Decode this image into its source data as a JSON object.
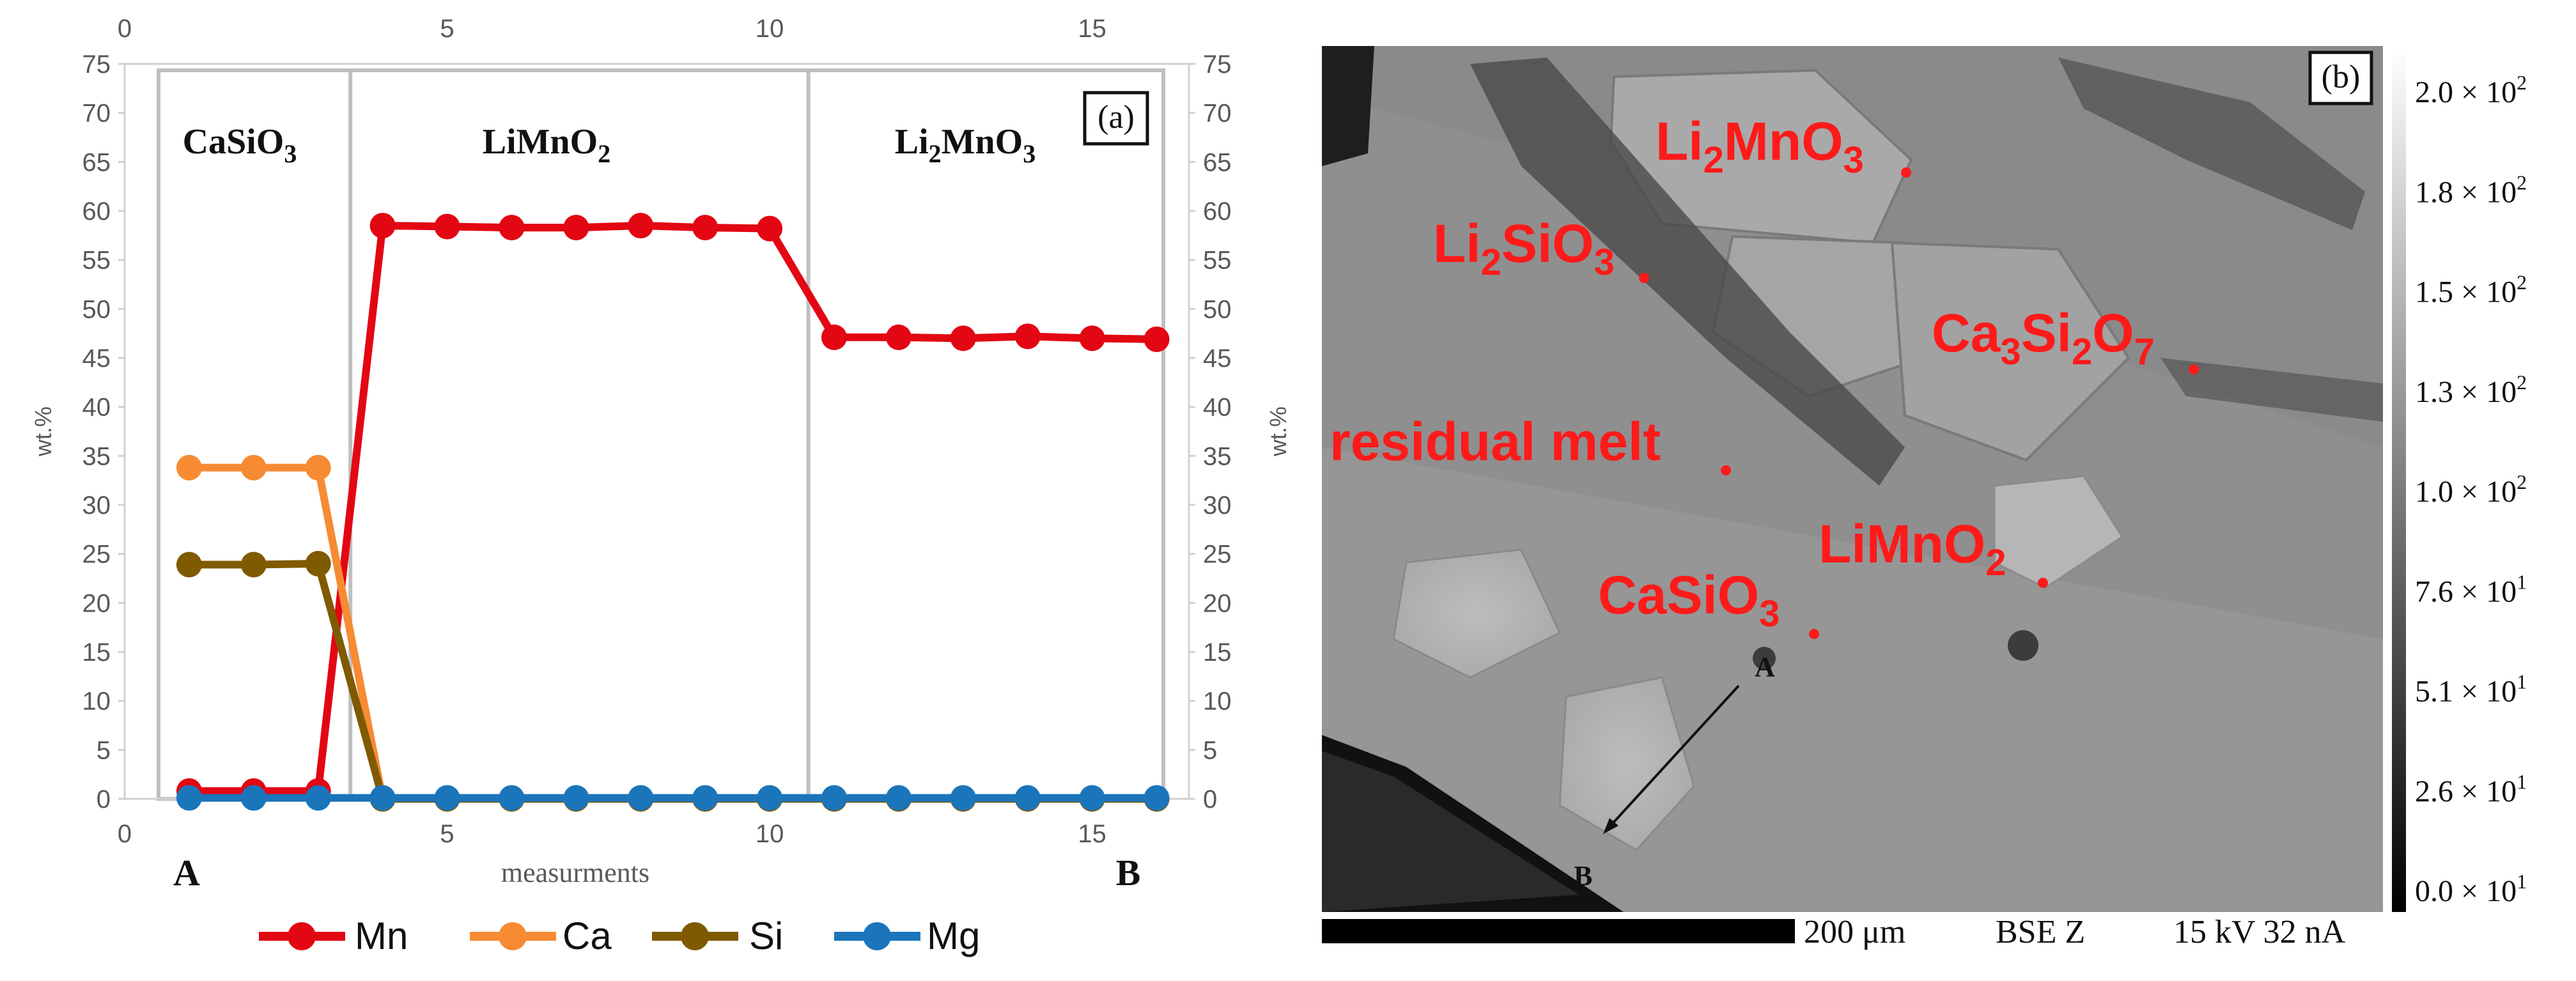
{
  "chart_data": [
    {
      "panel": "(a)",
      "type": "line",
      "x_top_ticks": [
        "0",
        "5",
        "10",
        "15"
      ],
      "x_bottom_ticks": [
        "0",
        "5",
        "10",
        "15"
      ],
      "y_ticks": [
        "0",
        "5",
        "10",
        "15",
        "20",
        "25",
        "30",
        "35",
        "40",
        "45",
        "50",
        "55",
        "60",
        "65",
        "70",
        "75"
      ],
      "xlabel": "measurments",
      "ylabel_left": "wt.%",
      "ylabel_right": "wt.%",
      "xlim": [
        0,
        16.5
      ],
      "ylim": [
        0,
        75
      ],
      "endpoint_labels": {
        "start": "A",
        "end": "B"
      },
      "regions": [
        {
          "base": "CaSiO",
          "sub": "3",
          "tail": "",
          "tail_sub": "",
          "x_from": 0.5,
          "x_to": 3.5
        },
        {
          "base": "LiMnO",
          "sub": "2",
          "tail": "",
          "tail_sub": "",
          "x_from": 3.5,
          "x_to": 10.6
        },
        {
          "base": "Li",
          "sub": "2",
          "tail": "MnO",
          "tail_sub": "3",
          "x_from": 10.6,
          "x_to": 16.5
        }
      ],
      "x": [
        1,
        2,
        3,
        4,
        5,
        6,
        7,
        8,
        9,
        10,
        11,
        12,
        13,
        14,
        15,
        16
      ],
      "series": [
        {
          "name": "Mn",
          "color": "#e30613",
          "values": [
            0.8,
            0.8,
            0.8,
            58.5,
            58.4,
            58.3,
            58.3,
            58.5,
            58.3,
            58.2,
            47.1,
            47.1,
            47.0,
            47.2,
            47.0,
            46.9
          ]
        },
        {
          "name": "Ca",
          "color": "#f68b33",
          "values": [
            33.8,
            33.8,
            33.8,
            0,
            0,
            0,
            0,
            0,
            0,
            0,
            0,
            0,
            0,
            0,
            0,
            0
          ]
        },
        {
          "name": "Si",
          "color": "#7f5a00",
          "values": [
            23.9,
            23.9,
            24.0,
            0,
            0,
            0,
            0,
            0,
            0,
            0,
            0,
            0,
            0,
            0,
            0,
            0
          ]
        },
        {
          "name": "Mg",
          "color": "#1b75bb",
          "values": [
            0.1,
            0.1,
            0.1,
            0.1,
            0.1,
            0.1,
            0.1,
            0.1,
            0.1,
            0.1,
            0.1,
            0.1,
            0.1,
            0.1,
            0.1,
            0.1
          ]
        }
      ]
    },
    {
      "panel": "(b)",
      "type": "image",
      "phase_labels": [
        {
          "base": "Li",
          "sub": "2",
          "tail": "MnO",
          "tail_sub": "3"
        },
        {
          "base": "Li",
          "sub": "2",
          "tail": "SiO",
          "tail_sub": "3"
        },
        {
          "base": "Ca",
          "sub": "3",
          "tail": "Si",
          "tail_sub": "2",
          "tail2": "O",
          "tail2_sub": "7"
        },
        {
          "base": "residual melt",
          "sub": "",
          "tail": "",
          "tail_sub": ""
        },
        {
          "base": "LiMnO",
          "sub": "2",
          "tail": "",
          "tail_sub": ""
        },
        {
          "base": "CaSiO",
          "sub": "3",
          "tail": "",
          "tail_sub": ""
        }
      ],
      "profile_points": {
        "start": "A",
        "end": "B"
      },
      "scale_bar_label": "200 μm",
      "detector": "BSE Z",
      "conditions": "15 kV 32 nA",
      "colorbar": {
        "mantissas": [
          "2.0",
          "1.8",
          "1.5",
          "1.3",
          "1.0",
          "7.6",
          "5.1",
          "2.6",
          "0.0"
        ],
        "exponents": [
          "2",
          "2",
          "2",
          "2",
          "2",
          "1",
          "1",
          "1",
          "1"
        ],
        "times": "×",
        "base": "10"
      }
    }
  ]
}
